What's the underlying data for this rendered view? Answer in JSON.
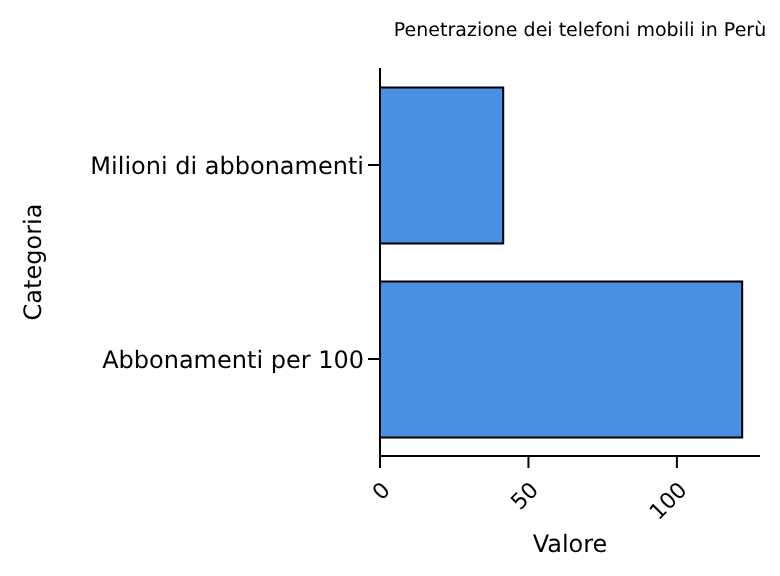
{
  "chart_data": {
    "type": "bar",
    "orientation": "horizontal",
    "title": "Penetrazione dei telefoni mobili in Perù",
    "xlabel": "Valore",
    "ylabel": "Categoria",
    "categories": [
      "Milioni di abbonamenti",
      "Abbonamenti per 100"
    ],
    "values": [
      41.5,
      122
    ],
    "color": "#4a90e2",
    "xlim": [
      0,
      128
    ],
    "xticks": [
      0,
      50,
      100
    ],
    "grid": false,
    "legend": false
  }
}
